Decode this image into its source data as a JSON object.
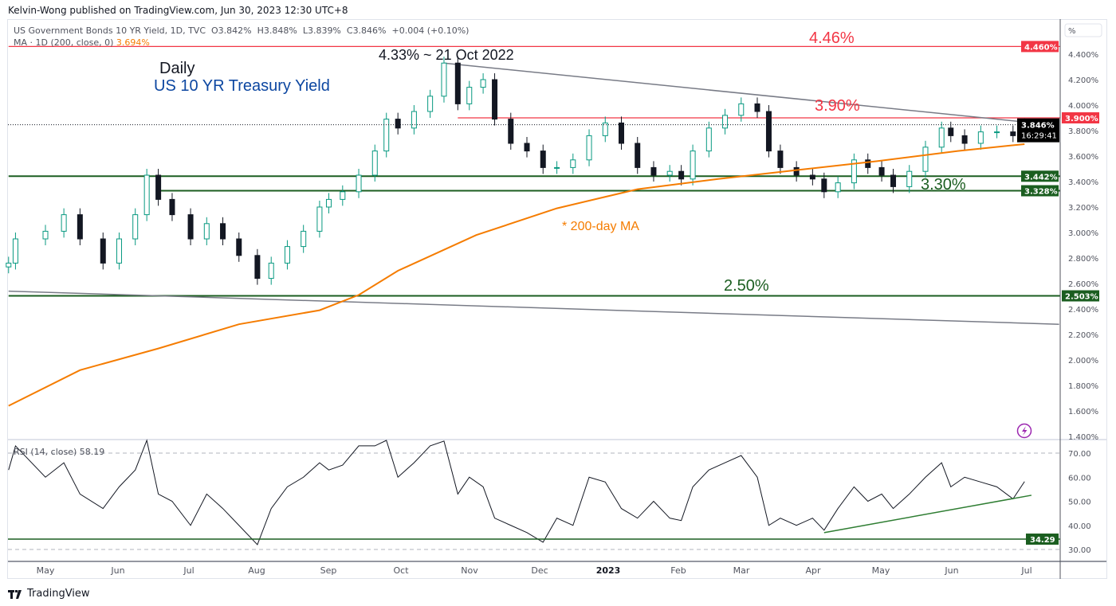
{
  "publisher_line": "Kelvin-Wong published on TradingView.com, Jun 30, 2023 12:30 UTC+8",
  "legend": {
    "symbol": "US Government Bonds 10 YR Yield, 1D, TVC",
    "ohlc": "O3.842%  H3.848%  L3.839%  C3.846%  +0.004 (+0.10%)",
    "ma_label": "MA · 1D (200, close, 0)",
    "ma_value": "3.694%",
    "rsi_label": "RSI (14, close)",
    "rsi_value": "58.19"
  },
  "price_axis": {
    "unit": "%",
    "ticks": [
      "4.400%",
      "4.200%",
      "4.000%",
      "3.800%",
      "3.600%",
      "3.400%",
      "3.200%",
      "3.000%",
      "2.800%",
      "2.600%",
      "2.400%",
      "2.200%",
      "2.000%",
      "1.800%",
      "1.600%",
      "1.400%"
    ],
    "badges": [
      {
        "label": "4.460%",
        "value": 4.46,
        "color": "#f23645"
      },
      {
        "label": "3.900%",
        "value": 3.9,
        "color": "#f23645"
      },
      {
        "label": "3.442%",
        "value": 3.442,
        "color": "#1b5e20"
      },
      {
        "label": "3.328%",
        "value": 3.328,
        "color": "#1b5e20"
      },
      {
        "label": "2.503%",
        "value": 2.503,
        "color": "#1b5e20"
      }
    ],
    "last_price_label": "3.846%",
    "countdown": "16:29:41"
  },
  "rsi_axis": {
    "ticks": [
      "70.00",
      "60.00",
      "50.00",
      "40.00",
      "30.00"
    ],
    "badge": {
      "label": "34.29",
      "value": 34.29,
      "color": "#1b5e20"
    }
  },
  "time_axis": [
    "May",
    "Jun",
    "Jul",
    "Aug",
    "Sep",
    "Oct",
    "Nov",
    "Dec",
    "2023",
    "Feb",
    "Mar",
    "Apr",
    "May",
    "Jun",
    "Jul"
  ],
  "annotations": {
    "title": "Daily",
    "subtitle": "US 10 YR Treasury Yield",
    "peak": "4.33% ~ 21 Oct 2022",
    "level_446": "4.46%",
    "level_390": "3.90%",
    "level_330": "3.30%",
    "level_250": "2.50%",
    "ma_note": "* 200-day MA"
  },
  "footer": {
    "brand": "TradingView"
  },
  "colors": {
    "up": "#089981",
    "down": "#131722",
    "ma": "#f57c00",
    "resistance": "#f23645",
    "support": "#1b5e20",
    "trendline": "#787b86",
    "title_blue": "#0d47a1"
  },
  "chart_data": {
    "type": "candlestick",
    "title": "",
    "ylabel": "%",
    "ylim": [
      1.4,
      4.5
    ],
    "price": {
      "dates": [
        "2022-04-15",
        "2022-04-18",
        "2022-05-01",
        "2022-05-09",
        "2022-05-16",
        "2022-05-26",
        "2022-06-02",
        "2022-06-09",
        "2022-06-14",
        "2022-06-19",
        "2022-06-25",
        "2022-07-03",
        "2022-07-10",
        "2022-07-17",
        "2022-07-24",
        "2022-08-01",
        "2022-08-07",
        "2022-08-14",
        "2022-08-21",
        "2022-08-28",
        "2022-09-01",
        "2022-09-07",
        "2022-09-14",
        "2022-09-21",
        "2022-09-26",
        "2022-10-01",
        "2022-10-08",
        "2022-10-15",
        "2022-10-21",
        "2022-10-27",
        "2022-11-01",
        "2022-11-07",
        "2022-11-12",
        "2022-11-19",
        "2022-11-26",
        "2022-12-03",
        "2022-12-09",
        "2022-12-16",
        "2022-12-23",
        "2022-12-30",
        "2023-01-06",
        "2023-01-13",
        "2023-01-20",
        "2023-01-27",
        "2023-02-01",
        "2023-02-06",
        "2023-02-13",
        "2023-02-20",
        "2023-02-27",
        "2023-03-06",
        "2023-03-11",
        "2023-03-16",
        "2023-03-23",
        "2023-03-30",
        "2023-04-04",
        "2023-04-10",
        "2023-04-17",
        "2023-04-23",
        "2023-04-29",
        "2023-05-04",
        "2023-05-11",
        "2023-05-18",
        "2023-05-25",
        "2023-05-29",
        "2023-06-04",
        "2023-06-11",
        "2023-06-18",
        "2023-06-25",
        "2023-06-30"
      ],
      "close": [
        2.76,
        2.95,
        3.01,
        3.14,
        2.95,
        2.76,
        2.95,
        3.14,
        3.45,
        3.26,
        3.14,
        2.95,
        3.07,
        2.95,
        2.82,
        2.64,
        2.76,
        2.89,
        3.01,
        3.2,
        3.26,
        3.32,
        3.45,
        3.64,
        3.89,
        3.82,
        3.95,
        4.07,
        4.33,
        4.01,
        4.14,
        4.2,
        3.89,
        3.7,
        3.64,
        3.51,
        3.51,
        3.57,
        3.76,
        3.86,
        3.7,
        3.51,
        3.45,
        3.48,
        3.42,
        3.64,
        3.82,
        3.92,
        4.01,
        3.95,
        3.64,
        3.51,
        3.45,
        3.42,
        3.32,
        3.39,
        3.57,
        3.51,
        3.45,
        3.36,
        3.48,
        3.67,
        3.82,
        3.76,
        3.7,
        3.79,
        3.79,
        3.76,
        3.846
      ]
    },
    "ma200": {
      "dates": [
        "2022-04-15",
        "2022-05-16",
        "2022-06-19",
        "2022-07-24",
        "2022-08-28",
        "2022-09-14",
        "2022-10-01",
        "2022-11-04",
        "2022-12-09",
        "2023-01-13",
        "2023-02-17",
        "2023-03-23",
        "2023-04-27",
        "2023-06-01",
        "2023-06-30"
      ],
      "values": [
        1.64,
        1.92,
        2.09,
        2.28,
        2.39,
        2.51,
        2.7,
        2.98,
        3.19,
        3.34,
        3.42,
        3.49,
        3.56,
        3.64,
        3.694
      ]
    },
    "rsi": {
      "ylim": [
        25,
        80
      ],
      "levels": [
        70,
        30
      ],
      "values": [
        63,
        73,
        60,
        66,
        53,
        47,
        56,
        63,
        76,
        53,
        50,
        40,
        53,
        47,
        40,
        32,
        47,
        56,
        60,
        66,
        63,
        65,
        73,
        73,
        76,
        60,
        66,
        73,
        75,
        53,
        60,
        56,
        43,
        40,
        37,
        33,
        43,
        40,
        60,
        58,
        47,
        43,
        50,
        43,
        42,
        56,
        63,
        66,
        69,
        60,
        40,
        43,
        40,
        43,
        38,
        47,
        56,
        50,
        53,
        47,
        53,
        60,
        66,
        56,
        60,
        58,
        56,
        51,
        58.19
      ]
    },
    "horizontal_levels": [
      {
        "value": 4.46,
        "from": "2022-04-15",
        "color": "#f23645"
      },
      {
        "value": 3.9,
        "from": "2022-10-27",
        "color": "#f23645"
      },
      {
        "value": 3.442,
        "from": "2022-04-15",
        "color": "#1b5e20"
      },
      {
        "value": 3.328,
        "from": "2022-06-19",
        "color": "#1b5e20"
      },
      {
        "value": 2.503,
        "from": "2022-04-15",
        "color": "#1b5e20"
      }
    ],
    "trendlines": [
      {
        "from": [
          "2022-10-21",
          4.33
        ],
        "to": [
          "2023-07-15",
          3.84
        ],
        "color": "#787b86"
      },
      {
        "from": [
          "2022-04-15",
          2.54
        ],
        "to": [
          "2023-07-15",
          2.28
        ],
        "color": "#787b86"
      }
    ],
    "rsi_lines": [
      {
        "from": [
          "2023-04-04",
          37
        ],
        "to": [
          "2023-07-03",
          52.5
        ],
        "color": "#2e7d32"
      },
      {
        "value": 34.29,
        "color": "#1b5e20"
      }
    ]
  }
}
